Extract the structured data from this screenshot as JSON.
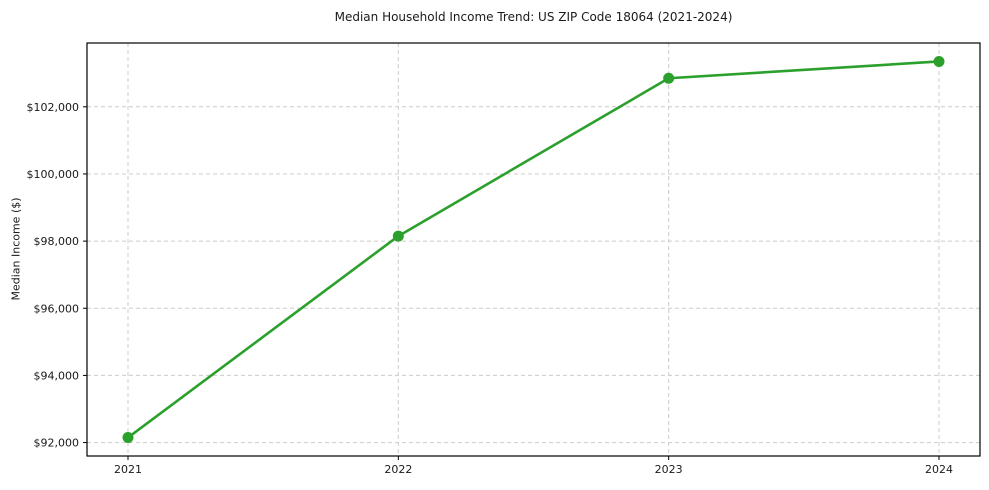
{
  "chart_data": {
    "type": "line",
    "title": "Median Household Income Trend: US ZIP Code 18064 (2021-2024)",
    "xlabel": "",
    "ylabel": "Median Income ($)",
    "x": [
      2021,
      2022,
      2023,
      2024
    ],
    "xtick_labels": [
      "2021",
      "2022",
      "2023",
      "2024"
    ],
    "series": [
      {
        "name": "Median Household Income",
        "values": [
          92150,
          98150,
          102850,
          103350
        ]
      }
    ],
    "yticks": [
      92000,
      94000,
      96000,
      98000,
      100000,
      102000
    ],
    "ytick_labels": [
      "$92,000",
      "$94,000",
      "$96,000",
      "$98,000",
      "$100,000",
      "$102,000"
    ],
    "ylim": [
      91600,
      103900
    ],
    "grid": "both, dashed",
    "legend": "none",
    "colors": {
      "line": "#2ca02c",
      "marker": "#2ca02c",
      "grid": "#cccccc",
      "spine": "#000000",
      "text": "#1a1a1a",
      "background": "#ffffff"
    }
  }
}
